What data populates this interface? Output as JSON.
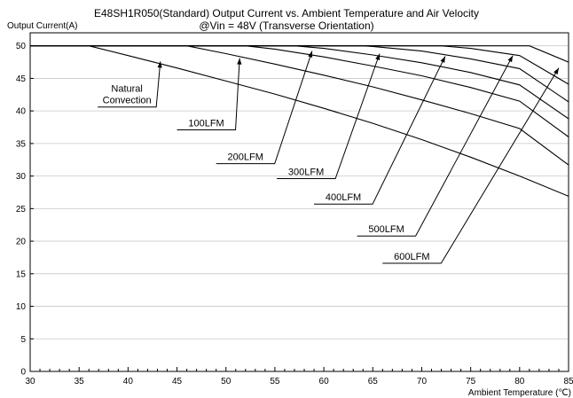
{
  "chart_data": {
    "type": "line",
    "title": "E48SH1R050(Standard)  Output Current vs. Ambient Temperature and Air Velocity",
    "subtitle": "@Vin = 48V (Transverse Orientation)",
    "ylabel": "Output Current(A)",
    "xlabel": "Ambient Temperature (℃)",
    "xlim": [
      30,
      85
    ],
    "ylim": [
      0,
      52
    ],
    "xticks": [
      30,
      35,
      40,
      45,
      50,
      55,
      60,
      65,
      70,
      75,
      80,
      85
    ],
    "yticks": [
      0,
      5,
      10,
      15,
      20,
      25,
      30,
      35,
      40,
      45,
      50
    ],
    "grid": "horizontal",
    "series": [
      {
        "name": "Natural Convection",
        "points": [
          [
            30,
            50
          ],
          [
            36,
            50
          ],
          [
            40,
            48.5
          ],
          [
            45,
            46.6
          ],
          [
            50,
            44.6
          ],
          [
            55,
            42.6
          ],
          [
            60,
            40.4
          ],
          [
            65,
            38.1
          ],
          [
            70,
            35.6
          ],
          [
            75,
            32.9
          ],
          [
            80,
            30.0
          ],
          [
            85,
            26.9
          ]
        ]
      },
      {
        "name": "100LFM",
        "points": [
          [
            30,
            50
          ],
          [
            46,
            50
          ],
          [
            50,
            48.8
          ],
          [
            55,
            47.2
          ],
          [
            60,
            45.5
          ],
          [
            65,
            43.7
          ],
          [
            70,
            41.7
          ],
          [
            75,
            39.6
          ],
          [
            80,
            37.3
          ],
          [
            85,
            31.7
          ]
        ]
      },
      {
        "name": "200LFM",
        "points": [
          [
            30,
            50
          ],
          [
            52,
            50
          ],
          [
            55,
            49.5
          ],
          [
            60,
            48.3
          ],
          [
            65,
            46.9
          ],
          [
            70,
            45.4
          ],
          [
            75,
            43.6
          ],
          [
            80,
            41.5
          ],
          [
            85,
            36.0
          ]
        ]
      },
      {
        "name": "300LFM",
        "points": [
          [
            30,
            50
          ],
          [
            57,
            50
          ],
          [
            60,
            49.6
          ],
          [
            65,
            48.6
          ],
          [
            70,
            47.4
          ],
          [
            75,
            45.9
          ],
          [
            80,
            44.0
          ],
          [
            85,
            38.8
          ]
        ]
      },
      {
        "name": "400LFM",
        "points": [
          [
            30,
            50
          ],
          [
            64,
            50
          ],
          [
            65,
            49.9
          ],
          [
            70,
            49.2
          ],
          [
            75,
            48.0
          ],
          [
            80,
            46.5
          ],
          [
            85,
            41.4
          ]
        ]
      },
      {
        "name": "500LFM",
        "points": [
          [
            30,
            50
          ],
          [
            72,
            50
          ],
          [
            75,
            49.6
          ],
          [
            80,
            48.5
          ],
          [
            85,
            44.1
          ]
        ]
      },
      {
        "name": "600LFM",
        "points": [
          [
            30,
            50
          ],
          [
            81,
            50
          ],
          [
            85,
            47.5
          ]
        ]
      }
    ],
    "annotations": [
      {
        "lines": [
          "Natural",
          "Convection"
        ],
        "from": [
          36.9,
          40.6
        ],
        "to": [
          43.3,
          47.6
        ]
      },
      {
        "lines": [
          "100LFM"
        ],
        "from": [
          45.0,
          37.1
        ],
        "to": [
          51.4,
          48.1
        ]
      },
      {
        "lines": [
          "200LFM"
        ],
        "from": [
          49.0,
          31.9
        ],
        "to": [
          58.8,
          49.2
        ]
      },
      {
        "lines": [
          "300LFM"
        ],
        "from": [
          55.2,
          29.6
        ],
        "to": [
          65.7,
          48.8
        ]
      },
      {
        "lines": [
          "400LFM"
        ],
        "from": [
          59.0,
          25.7
        ],
        "to": [
          72.4,
          48.4
        ]
      },
      {
        "lines": [
          "500LFM"
        ],
        "from": [
          63.4,
          20.8
        ],
        "to": [
          79.3,
          48.5
        ]
      },
      {
        "lines": [
          "600LFM"
        ],
        "from": [
          66.0,
          16.6
        ],
        "to": [
          84.0,
          46.6
        ]
      }
    ]
  }
}
